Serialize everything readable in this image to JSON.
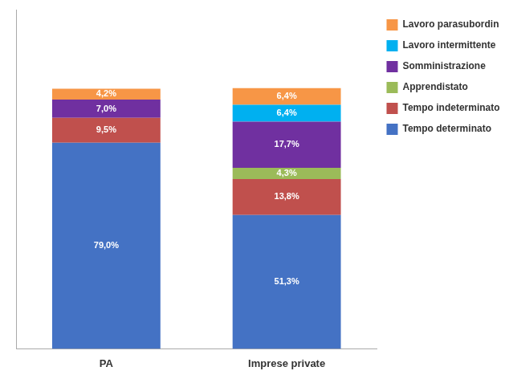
{
  "chart_data": {
    "type": "bar",
    "stacked": true,
    "data_labels": true,
    "categories": [
      "PA",
      "Imprese private"
    ],
    "series": [
      {
        "name": "Tempo determinato",
        "color": "#4472C4",
        "values": [
          79.0,
          51.3
        ],
        "value_labels": [
          "79,0%",
          "51,3%"
        ]
      },
      {
        "name": "Tempo indeterminato",
        "color": "#C0504D",
        "values": [
          9.5,
          13.8
        ],
        "value_labels": [
          "9,5%",
          "13,8%"
        ]
      },
      {
        "name": "Apprendistato",
        "color": "#9BBB59",
        "values": [
          0.0,
          4.3
        ],
        "value_labels": [
          null,
          "4,3%"
        ]
      },
      {
        "name": "Somministrazione",
        "color": "#7030A0",
        "values": [
          7.0,
          17.7
        ],
        "value_labels": [
          "7,0%",
          "17,7%"
        ]
      },
      {
        "name": "Lavoro intermittente",
        "color": "#00B0F0",
        "values": [
          0.0,
          6.4
        ],
        "value_labels": [
          null,
          "6,4%"
        ]
      },
      {
        "name": "Lavoro parasubordinato",
        "color": "#F79646",
        "values": [
          4.2,
          6.4
        ],
        "value_labels": [
          "4,2%",
          "6,4%"
        ]
      }
    ],
    "ylim": [
      0,
      130
    ],
    "yticks": [],
    "tick_labels": "x",
    "grid": false,
    "legend": "right"
  }
}
